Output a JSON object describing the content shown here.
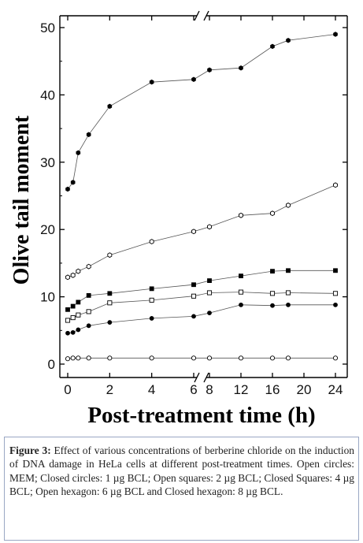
{
  "chart_data": {
    "type": "line",
    "xlabel": "Post-treatment time (h)",
    "ylabel": "Olive tail moment",
    "ylim": [
      0,
      50
    ],
    "yticks": [
      0,
      10,
      20,
      30,
      40,
      50
    ],
    "xticks": [
      0,
      2,
      4,
      6,
      8,
      12,
      16,
      20,
      24
    ],
    "x_axis_break": "between 6 and 8",
    "grid": false,
    "series": [
      {
        "name": "MEM",
        "marker": "open-circle",
        "x": [
          0,
          0.25,
          0.5,
          1,
          2,
          4,
          6,
          8,
          12,
          16,
          18,
          24
        ],
        "values": [
          0.8,
          0.9,
          0.9,
          0.9,
          0.9,
          0.9,
          0.9,
          0.9,
          0.9,
          0.9,
          0.9,
          0.9
        ]
      },
      {
        "name": "1 µg BCL",
        "marker": "closed-circle",
        "x": [
          0,
          0.25,
          0.5,
          1,
          2,
          4,
          6,
          8,
          12,
          16,
          18,
          24
        ],
        "values": [
          4.6,
          4.7,
          5.1,
          5.7,
          6.2,
          6.8,
          7.1,
          7.6,
          8.8,
          8.7,
          8.8,
          8.8
        ]
      },
      {
        "name": "2 µg BCL",
        "marker": "open-square",
        "x": [
          0,
          0.25,
          0.5,
          1,
          2,
          4,
          6,
          8,
          12,
          16,
          18,
          24
        ],
        "values": [
          6.5,
          6.9,
          7.3,
          7.8,
          9.1,
          9.5,
          10.1,
          10.6,
          10.7,
          10.5,
          10.6,
          10.5
        ]
      },
      {
        "name": "4 µg BCL",
        "marker": "closed-square",
        "x": [
          0,
          0.25,
          0.5,
          1,
          2,
          4,
          6,
          8,
          12,
          16,
          18,
          24
        ],
        "values": [
          8.1,
          8.6,
          9.2,
          10.2,
          10.5,
          11.2,
          11.8,
          12.4,
          13.1,
          13.8,
          13.9,
          13.9
        ]
      },
      {
        "name": "6 µg BCL",
        "marker": "open-hexagon",
        "x": [
          0,
          0.25,
          0.5,
          1,
          2,
          4,
          6,
          8,
          12,
          16,
          18,
          24
        ],
        "values": [
          12.9,
          13.2,
          13.8,
          14.5,
          16.2,
          18.2,
          19.7,
          20.4,
          22.1,
          22.4,
          23.6,
          26.6
        ]
      },
      {
        "name": "8 µg BCL",
        "marker": "closed-hexagon",
        "x": [
          0,
          0.25,
          0.5,
          1,
          2,
          4,
          6,
          8,
          12,
          16,
          18,
          24
        ],
        "values": [
          26.0,
          27.0,
          31.4,
          34.1,
          38.3,
          41.9,
          42.3,
          43.7,
          44.0,
          47.2,
          48.1,
          49.0
        ]
      }
    ]
  },
  "caption": {
    "label": "Figure 3:",
    "text": " Effect of various concentrations of berberine chloride on the induction of DNA damage in HeLa cells at different post-treatment times. Open circles: MEM; Closed circles: 1 µg BCL; Open squares: 2 µg BCL; Closed Squares: 4 µg BCL; Open hexagon: 6 µg BCL and Closed hexagon: 8 µg BCL."
  }
}
